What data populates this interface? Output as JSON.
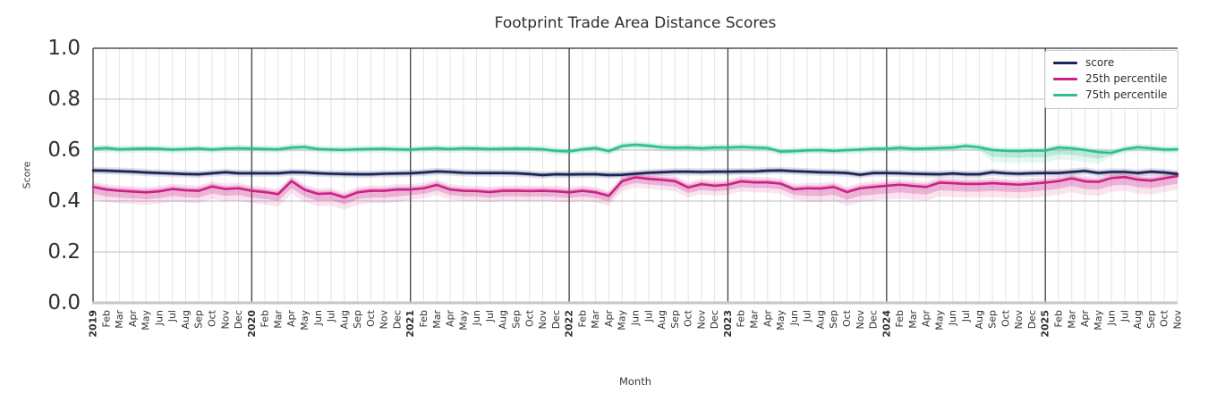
{
  "chart_data": {
    "type": "line",
    "title": "Footprint Trade Area Distance Scores",
    "xlabel": "Month",
    "ylabel": "Score",
    "ylim": [
      0.0,
      1.0
    ],
    "yticks": [
      0.0,
      0.2,
      0.4,
      0.6,
      0.8,
      1.0
    ],
    "grid": true,
    "legend_position": "upper right",
    "x_labels": [
      "2019",
      "Feb",
      "Mar",
      "Apr",
      "May",
      "Jun",
      "Jul",
      "Aug",
      "Sep",
      "Oct",
      "Nov",
      "Dec",
      "2020",
      "Feb",
      "Mar",
      "Apr",
      "May",
      "Jun",
      "Jul",
      "Aug",
      "Sep",
      "Oct",
      "Nov",
      "Dec",
      "2021",
      "Feb",
      "Mar",
      "Apr",
      "May",
      "Jun",
      "Jul",
      "Aug",
      "Sep",
      "Oct",
      "Nov",
      "Dec",
      "2022",
      "Feb",
      "Mar",
      "Apr",
      "May",
      "Jun",
      "Jul",
      "Aug",
      "Sep",
      "Oct",
      "Nov",
      "Dec",
      "2023",
      "Feb",
      "Mar",
      "Apr",
      "May",
      "Jun",
      "Jul",
      "Aug",
      "Sep",
      "Oct",
      "Nov",
      "Dec",
      "2024",
      "Feb",
      "Mar",
      "Apr",
      "May",
      "Jun",
      "Jul",
      "Aug",
      "Sep",
      "Oct",
      "Nov",
      "Dec",
      "2025",
      "Feb",
      "Mar",
      "Apr",
      "May",
      "Jun",
      "Jul",
      "Aug",
      "Sep",
      "Oct",
      "Nov"
    ],
    "series": [
      {
        "name": "score",
        "color": "#1b2556",
        "band": {
          "lo": 0.008,
          "hi": 0.008
        },
        "values": [
          0.52,
          0.519,
          0.517,
          0.515,
          0.512,
          0.51,
          0.508,
          0.506,
          0.505,
          0.509,
          0.513,
          0.509,
          0.509,
          0.509,
          0.509,
          0.513,
          0.512,
          0.509,
          0.507,
          0.506,
          0.505,
          0.505,
          0.507,
          0.508,
          0.509,
          0.512,
          0.516,
          0.514,
          0.511,
          0.51,
          0.51,
          0.51,
          0.509,
          0.506,
          0.502,
          0.505,
          0.504,
          0.505,
          0.505,
          0.502,
          0.503,
          0.507,
          0.511,
          0.513,
          0.515,
          0.515,
          0.514,
          0.515,
          0.515,
          0.516,
          0.516,
          0.519,
          0.52,
          0.517,
          0.515,
          0.513,
          0.512,
          0.51,
          0.503,
          0.51,
          0.51,
          0.509,
          0.507,
          0.506,
          0.505,
          0.508,
          0.505,
          0.505,
          0.513,
          0.509,
          0.507,
          0.509,
          0.51,
          0.51,
          0.514,
          0.518,
          0.51,
          0.514,
          0.514,
          0.51,
          0.515,
          0.512,
          0.506
        ]
      },
      {
        "name": "25th percentile",
        "color": "#cb2186",
        "band": {
          "lo": 0.022,
          "hi": 0.012
        },
        "band_wide": [
          {
            "from": 0,
            "to": 23,
            "lo": 0.027
          },
          {
            "from": 54,
            "to": 82,
            "lo": 0.03
          }
        ],
        "values": [
          0.455,
          0.445,
          0.44,
          0.437,
          0.434,
          0.438,
          0.447,
          0.442,
          0.44,
          0.457,
          0.447,
          0.45,
          0.44,
          0.435,
          0.427,
          0.478,
          0.444,
          0.428,
          0.43,
          0.414,
          0.434,
          0.44,
          0.44,
          0.445,
          0.445,
          0.45,
          0.463,
          0.445,
          0.44,
          0.439,
          0.435,
          0.44,
          0.44,
          0.439,
          0.44,
          0.438,
          0.434,
          0.44,
          0.434,
          0.42,
          0.478,
          0.493,
          0.487,
          0.483,
          0.478,
          0.453,
          0.466,
          0.46,
          0.464,
          0.477,
          0.473,
          0.473,
          0.468,
          0.446,
          0.45,
          0.449,
          0.455,
          0.435,
          0.45,
          0.455,
          0.46,
          0.464,
          0.459,
          0.455,
          0.472,
          0.47,
          0.467,
          0.467,
          0.47,
          0.467,
          0.464,
          0.468,
          0.472,
          0.478,
          0.489,
          0.477,
          0.475,
          0.49,
          0.494,
          0.484,
          0.48,
          0.489,
          0.498
        ]
      },
      {
        "name": "75th percentile",
        "color": "#2fbf90",
        "band": {
          "lo": 0.009,
          "hi": 0.008
        },
        "band_wide": [
          {
            "from": 68,
            "to": 76,
            "lo": 0.026
          }
        ],
        "values": [
          0.605,
          0.608,
          0.603,
          0.605,
          0.606,
          0.605,
          0.602,
          0.604,
          0.606,
          0.602,
          0.606,
          0.607,
          0.606,
          0.604,
          0.603,
          0.61,
          0.612,
          0.604,
          0.602,
          0.601,
          0.603,
          0.604,
          0.605,
          0.603,
          0.602,
          0.605,
          0.607,
          0.604,
          0.607,
          0.606,
          0.604,
          0.605,
          0.606,
          0.605,
          0.603,
          0.597,
          0.595,
          0.603,
          0.608,
          0.596,
          0.616,
          0.621,
          0.617,
          0.611,
          0.609,
          0.61,
          0.607,
          0.61,
          0.61,
          0.612,
          0.61,
          0.608,
          0.594,
          0.596,
          0.599,
          0.6,
          0.597,
          0.6,
          0.602,
          0.605,
          0.605,
          0.609,
          0.605,
          0.606,
          0.608,
          0.61,
          0.616,
          0.611,
          0.6,
          0.597,
          0.596,
          0.598,
          0.598,
          0.61,
          0.607,
          0.6,
          0.592,
          0.589,
          0.604,
          0.611,
          0.607,
          0.602,
          0.603
        ]
      }
    ],
    "style": {
      "grid_minor_color": "#e4e4e4",
      "grid_major_color": "#c9c9c9",
      "year_line_color": "#3f3f3f",
      "top_spine_color": "#2f2f2f",
      "bottom_spine_color": "#c6c6c6",
      "tick_label_color": "#303030"
    }
  }
}
